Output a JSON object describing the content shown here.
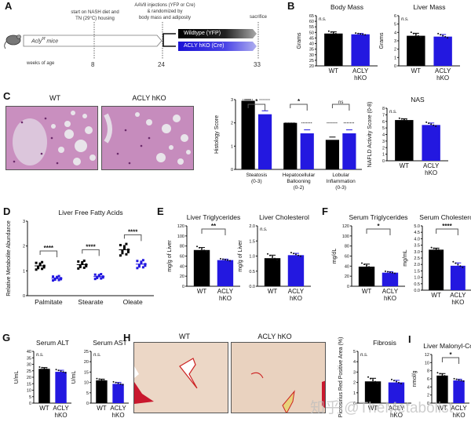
{
  "panels": {
    "A": {
      "label": "A",
      "mouse_label": "Acly",
      "mouse_sup": "f/f",
      "mouse_suffix": " mice",
      "axis_label": "weeks of age",
      "events": [
        {
          "week": "8",
          "text_lines": [
            "start on NASH diet and",
            "TN (29°C) housing"
          ]
        },
        {
          "week": "24",
          "text_lines": [
            "AAV8 injections (YFP or Cre)",
            "& randomized by",
            "body mass and adiposity"
          ]
        },
        {
          "week": "33",
          "text_lines": [
            "sacrifice"
          ]
        }
      ],
      "arms": [
        {
          "label": "Wildtype (YFP)",
          "color": "#000000"
        },
        {
          "label": "ACLY hKO (Cre)",
          "color": "#1a12d6"
        }
      ]
    },
    "B": {
      "label": "B"
    },
    "C": {
      "label": "C",
      "image_titles": [
        "WT",
        "ACLY hKO"
      ]
    },
    "D": {
      "label": "D"
    },
    "E": {
      "label": "E"
    },
    "F": {
      "label": "F"
    },
    "G": {
      "label": "G"
    },
    "H": {
      "label": "H",
      "image_titles": [
        "WT",
        "ACLY hKO"
      ]
    },
    "I": {
      "label": "I"
    }
  },
  "groups": {
    "wt": "WT",
    "ko_line1": "ACLY",
    "ko_line2": "hKO"
  },
  "colors": {
    "wt": "#000000",
    "ko": "#2318e0"
  },
  "watermark": "知乎 @TheMetabolist",
  "chart_data": [
    {
      "id": "body_mass",
      "type": "bar",
      "title": "Body Mass",
      "ylabel": "Grams",
      "categories": [
        "WT",
        "ACLY hKO"
      ],
      "values": [
        49,
        48.3
      ],
      "errors": [
        1.5,
        0.8
      ],
      "ylim": [
        20,
        65
      ],
      "yticks": [
        20,
        25,
        30,
        35,
        40,
        45,
        50,
        55,
        60,
        65
      ],
      "annotation": "n.s."
    },
    {
      "id": "liver_mass",
      "type": "bar",
      "title": "Liver Mass",
      "ylabel": "Grams",
      "categories": [
        "WT",
        "ACLY hKO"
      ],
      "values": [
        3.6,
        3.5
      ],
      "errors": [
        0.3,
        0.25
      ],
      "ylim": [
        0,
        6
      ],
      "yticks": [
        0,
        1,
        2,
        3,
        4,
        5,
        6
      ],
      "annotation": "n.s."
    },
    {
      "id": "histology",
      "type": "bar",
      "ylabel": "Histology Score",
      "categories": [
        "Steatosis (0-3)",
        "Hepatocellular Ballooning (0-2)",
        "Lobular Inflammation (0-3)"
      ],
      "series": [
        {
          "name": "WT",
          "values": [
            2.95,
            2.0,
            1.27
          ],
          "errors": [
            0.05,
            0.0,
            0.12
          ]
        },
        {
          "name": "ACLY hKO",
          "values": [
            2.37,
            1.55,
            1.55
          ],
          "errors": [
            0.15,
            0.15,
            0.15
          ]
        }
      ],
      "ylim": [
        0,
        3
      ],
      "yticks": [
        0,
        1,
        2,
        3
      ],
      "annotations": [
        "*",
        "*",
        "ns"
      ]
    },
    {
      "id": "nas",
      "type": "bar",
      "title": "NAS",
      "ylabel": "NAFLD Activity Score (0-8)",
      "categories": [
        "WT",
        "ACLY hKO"
      ],
      "values": [
        6.2,
        5.45
      ],
      "errors": [
        0.2,
        0.3
      ],
      "ylim": [
        0,
        8
      ],
      "yticks": [
        0,
        1,
        2,
        3,
        4,
        5,
        6,
        7,
        8
      ],
      "annotation": "n.s."
    },
    {
      "id": "liver_ffa",
      "type": "scatter",
      "title": "Liver Free Fatty Acids",
      "ylabel": "Relative Metabolite Abundance",
      "categories": [
        "Palmitate",
        "Stearate",
        "Oleate"
      ],
      "series": [
        {
          "name": "WT",
          "means": [
            1.2,
            1.25,
            1.85
          ]
        },
        {
          "name": "ACLY hKO",
          "means": [
            0.7,
            0.77,
            1.27
          ]
        }
      ],
      "ylim": [
        0,
        3
      ],
      "yticks": [
        0,
        1,
        2,
        3
      ],
      "annotations": [
        "****",
        "****",
        "****"
      ]
    },
    {
      "id": "liver_tg",
      "type": "bar",
      "title": "Liver Triglycerides",
      "ylabel": "mg/g of Liver",
      "categories": [
        "WT",
        "ACLY hKO"
      ],
      "values": [
        72,
        52
      ],
      "errors": [
        5,
        2
      ],
      "ylim": [
        0,
        120
      ],
      "yticks": [
        0,
        20,
        40,
        60,
        80,
        100,
        120
      ],
      "annotation": "**"
    },
    {
      "id": "liver_chol",
      "type": "bar",
      "title": "Liver Cholesterol",
      "ylabel": "mg/g of Liver",
      "categories": [
        "WT",
        "ACLY hKO"
      ],
      "values": [
        0.93,
        1.03
      ],
      "errors": [
        0.1,
        0.06
      ],
      "ylim": [
        0,
        2.0
      ],
      "yticks": [
        0.0,
        0.5,
        1.0,
        1.5,
        2.0
      ],
      "annotation": "n.s."
    },
    {
      "id": "serum_tg",
      "type": "bar",
      "title": "Serum Triglycerides",
      "ylabel": "mg/dL",
      "categories": [
        "WT",
        "ACLY hKO"
      ],
      "values": [
        39,
        27
      ],
      "errors": [
        5,
        2
      ],
      "ylim": [
        0,
        120
      ],
      "yticks": [
        0,
        20,
        40,
        60,
        80,
        100,
        120
      ],
      "annotation": "*"
    },
    {
      "id": "serum_chol",
      "type": "bar",
      "title": "Serum Cholesterol",
      "ylabel": "mg/mL",
      "categories": [
        "WT",
        "ACLY hKO"
      ],
      "values": [
        3.15,
        1.9
      ],
      "errors": [
        0.12,
        0.22
      ],
      "ylim": [
        0,
        5.0
      ],
      "yticks": [
        0.0,
        0.5,
        1.0,
        1.5,
        2.0,
        2.5,
        3.0,
        3.5,
        4.0,
        4.5,
        5.0
      ],
      "annotation": "****"
    },
    {
      "id": "serum_alt",
      "type": "bar",
      "title": "Serum ALT",
      "ylabel": "U/mL",
      "categories": [
        "WT",
        "ACLY hKO"
      ],
      "values": [
        26.5,
        24.2
      ],
      "errors": [
        1,
        1.2
      ],
      "ylim": [
        0,
        40
      ],
      "yticks": [
        0,
        5,
        10,
        15,
        20,
        25,
        30,
        35,
        40
      ],
      "annotation": "n.s."
    },
    {
      "id": "serum_ast",
      "type": "bar",
      "title": "Serum AST",
      "ylabel": "U/mL",
      "categories": [
        "WT",
        "ACLY hKO"
      ],
      "values": [
        11,
        9.3
      ],
      "errors": [
        0.6,
        0.7
      ],
      "ylim": [
        0,
        25
      ],
      "yticks": [
        0,
        5,
        10,
        15,
        20,
        25
      ],
      "annotation": "n.s."
    },
    {
      "id": "fibrosis",
      "type": "bar",
      "title": "Fibrosis",
      "ylabel": "Picrosirius Red Positive Area (%)",
      "categories": [
        "WT",
        "ACLY hKO"
      ],
      "values": [
        2.1,
        2.0
      ],
      "errors": [
        0.3,
        0.2
      ],
      "ylim": [
        0,
        5
      ],
      "yticks": [
        0,
        1,
        2,
        3,
        4,
        5
      ],
      "annotation": "n.s."
    },
    {
      "id": "malonyl_coa",
      "type": "bar",
      "title": "Liver Malonyl-CoA",
      "ylabel": "nmol/g",
      "categories": [
        "WT",
        "ACLY hKO"
      ],
      "values": [
        6.8,
        5.6
      ],
      "errors": [
        0.5,
        0.3
      ],
      "ylim": [
        0,
        12
      ],
      "yticks": [
        0,
        2,
        4,
        6,
        8,
        10,
        12
      ],
      "annotation": "*"
    }
  ]
}
